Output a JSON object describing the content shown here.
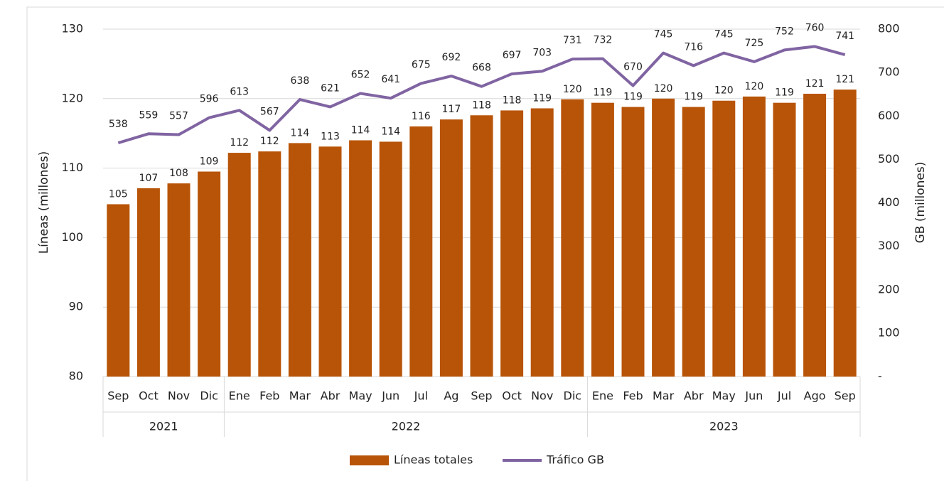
{
  "chart_data": {
    "type": "bar_line",
    "groups": [
      {
        "name": "2021",
        "categories": [
          "Sep",
          "Oct",
          "Nov",
          "Dic"
        ]
      },
      {
        "name": "2022",
        "categories": [
          "Ene",
          "Feb",
          "Mar",
          "Abr",
          "May",
          "Jun",
          "Jul",
          "Ag",
          "Sep",
          "Oct",
          "Nov",
          "Dic"
        ]
      },
      {
        "name": "2023",
        "categories": [
          "Ene",
          "Feb",
          "Mar",
          "Abr",
          "May",
          "Jun",
          "Jul",
          "Ago",
          "Sep"
        ]
      }
    ],
    "series": [
      {
        "name": "Líneas totales",
        "type": "bar",
        "color": "#b85407",
        "values": [
          104.8,
          107.1,
          107.8,
          109.5,
          112.2,
          112.4,
          113.6,
          113.1,
          114.0,
          113.8,
          116.0,
          117.0,
          117.6,
          118.3,
          118.6,
          119.9,
          119.4,
          118.8,
          120.0,
          118.8,
          119.7,
          120.3,
          119.4,
          120.7,
          121.3
        ],
        "value_labels": [
          "105",
          "107",
          "108",
          "109",
          "112",
          "112",
          "114",
          "113",
          "114",
          "114",
          "116",
          "117",
          "118",
          "118",
          "119",
          "120",
          "119",
          "119",
          "120",
          "119",
          "120",
          "120",
          "119",
          "121",
          "121"
        ]
      },
      {
        "name": "Tráfico GB",
        "type": "line",
        "axis": "y2",
        "color": "#8064a2",
        "values": [
          538,
          559,
          557,
          596,
          613,
          567,
          638,
          621,
          652,
          641,
          675,
          692,
          668,
          697,
          703,
          731,
          732,
          670,
          745,
          716,
          745,
          725,
          752,
          760,
          741
        ]
      }
    ],
    "ylabel": "Líneas (millones)",
    "y2label": "GB (millones)",
    "ylim": [
      80,
      130
    ],
    "yticks": [
      80,
      90,
      100,
      110,
      120,
      130
    ],
    "y2lim": [
      0,
      800
    ],
    "y2ticks": [
      {
        "value": 0,
        "label": "-"
      },
      100,
      200,
      300,
      400,
      500,
      600,
      700,
      800
    ],
    "grid": true,
    "legend": "bottom"
  }
}
